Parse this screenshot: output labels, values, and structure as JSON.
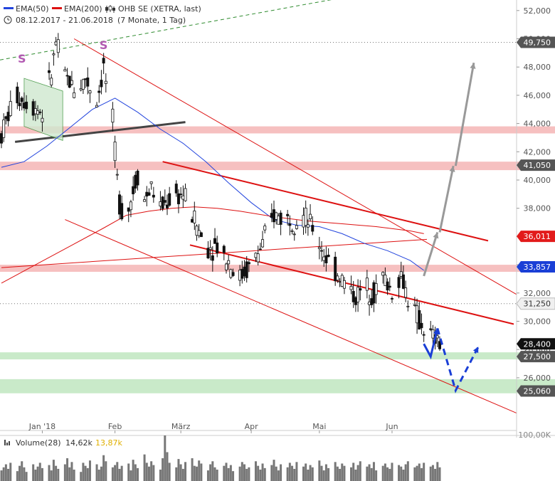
{
  "header": {
    "legend_ema50_label": "EMA(50)",
    "legend_ema200_label": "EMA(200)",
    "legend_symbol_label": "OHB SE (XETRA, last)",
    "range_label": "08.12.2017 - 21.06.2018",
    "period_label": "(7 Monate, 1 Tag)"
  },
  "colors": {
    "ema50": "#2244dd",
    "ema200": "#dd1111",
    "trendline": "#ee1111",
    "support_zone_red": "#f5b5b5",
    "support_zone_green": "#bfe6bf",
    "candle": "#111111",
    "volume": "#777777",
    "arrow_gray": "#999999",
    "arrow_blue": "#1a3fd6",
    "axis_text": "#555555",
    "pattern_marker": "#b25ab2"
  },
  "chart_data": {
    "type": "candlestick",
    "title": "OHB SE (XETRA, last)",
    "subtitle": "08.12.2017 - 21.06.2018 (7 Monate, 1 Tag)",
    "y_axis": {
      "ylim": [
        24500,
        52800
      ],
      "ticks": [
        "52,000",
        "50,000",
        "48,000",
        "46,000",
        "44,000",
        "42,000",
        "40,000",
        "38,000",
        "36,000",
        "34,000",
        "32,000",
        "30,000",
        "28,000",
        "26,000"
      ],
      "tick_values": [
        52000,
        50000,
        48000,
        46000,
        44000,
        42000,
        40000,
        38000,
        36000,
        34000,
        32000,
        30000,
        28000,
        26000
      ],
      "side": "right"
    },
    "x_axis": {
      "labels": [
        "Jan '18",
        "Feb",
        "März",
        "Apr",
        "Mai",
        "Jun"
      ],
      "label_days": [
        18,
        50,
        79,
        110,
        140,
        172
      ]
    },
    "price_path": {
      "x": [
        0,
        6,
        12,
        18,
        22,
        24,
        28,
        33,
        37,
        42,
        45,
        49,
        51,
        52,
        54,
        56,
        60,
        63,
        66,
        70,
        75,
        80,
        86,
        90,
        95,
        100,
        104,
        110,
        115,
        120,
        126,
        130,
        133,
        137,
        140,
        144,
        150,
        156,
        160,
        164,
        168,
        172,
        176,
        180,
        184,
        186,
        190,
        193
      ],
      "close": [
        43.2,
        46,
        45.5,
        44.8,
        47.5,
        49.7,
        47.4,
        46.3,
        47.2,
        45.6,
        48.0,
        44.0,
        40.0,
        38.5,
        37.5,
        38.0,
        40.5,
        38.6,
        39.5,
        38.0,
        38.8,
        39.0,
        36.8,
        35.2,
        35.4,
        34.3,
        33.0,
        34.0,
        35.4,
        37.5,
        37.3,
        37.2,
        37.4,
        36.6,
        35.5,
        34.2,
        33.0,
        31.7,
        32.5,
        32.0,
        33.2,
        32.1,
        33.3,
        31.2,
        30.0,
        29.5,
        28.8,
        28.4
      ]
    },
    "series": [
      {
        "name": "EMA(50)",
        "color": "#2244dd",
        "x": [
          0,
          10,
          20,
          30,
          40,
          50,
          60,
          70,
          80,
          90,
          100,
          110,
          120,
          130,
          140,
          150,
          160,
          170,
          180,
          186
        ],
        "values": [
          40.9,
          41.3,
          42.4,
          43.7,
          45.0,
          45.8,
          44.8,
          43.6,
          42.6,
          41.3,
          39.8,
          38.4,
          37.2,
          36.8,
          36.7,
          36.2,
          35.5,
          35.0,
          34.3,
          33.6
        ]
      },
      {
        "name": "EMA(200)",
        "color": "#dd1111",
        "x": [
          0,
          15,
          30,
          45,
          55,
          65,
          75,
          85,
          95,
          105,
          120,
          135,
          150,
          165,
          180,
          186
        ],
        "values": [
          32.7,
          34.0,
          35.3,
          36.6,
          37.5,
          37.8,
          38.0,
          38.1,
          38.0,
          37.8,
          37.4,
          37.1,
          36.9,
          36.7,
          36.4,
          36.2
        ]
      }
    ],
    "horizontal_levels": [
      {
        "label": "49,750",
        "value": 49.75,
        "tag_color": "#555555"
      },
      {
        "label": "41,050",
        "value": 41.05,
        "tag_color": "#555555",
        "zone": [
          40.7,
          41.3
        ],
        "zone_color": "#f5b5b5"
      },
      {
        "label": "36,011",
        "value": 36.011,
        "tag_color": "#e21b1b"
      },
      {
        "label": "33,857",
        "value": 33.857,
        "tag_color": "#1a3fd6",
        "zone": [
          33.5,
          34.0
        ],
        "zone_color": "#f5b5b5"
      },
      {
        "label": "31,250",
        "value": 31.25,
        "tag_color": "#f0f0f0",
        "text_color": "#333333"
      },
      {
        "label": "28,400",
        "value": 28.4,
        "tag_color": "#111111"
      },
      {
        "label": "27,500",
        "value": 27.5,
        "tag_color": "#555555",
        "zone": [
          27.3,
          27.8
        ],
        "zone_color": "#bfe6bf"
      },
      {
        "label": "25,060",
        "value": 25.06,
        "tag_color": "#555555",
        "zone": [
          24.9,
          25.9
        ],
        "zone_color": "#bfe6bf"
      }
    ],
    "extra_zones": [
      {
        "zone": [
          43.3,
          43.8
        ],
        "zone_color": "#f5b5b5"
      }
    ],
    "pattern_markers": [
      {
        "label": "S",
        "day": 9
      },
      {
        "label": "S",
        "day": 45
      }
    ],
    "volume_panel": {
      "label": "Volume(28)",
      "value1": "14,62k",
      "value2": "13,87k",
      "scale_label": "100,00K",
      "bars": [
        14,
        18,
        22,
        16,
        24,
        13,
        20,
        26,
        18,
        12,
        22,
        15,
        19,
        24,
        17,
        21,
        14,
        28,
        20,
        16,
        22,
        30,
        18,
        25,
        15,
        12,
        24,
        20,
        17,
        27,
        22,
        15,
        19,
        34,
        26,
        18,
        21,
        25,
        16,
        20,
        23,
        14,
        28,
        22,
        17,
        35,
        24,
        19,
        26,
        21,
        15,
        30,
        60,
        38,
        24,
        18,
        29,
        22,
        16,
        25,
        30,
        20,
        19,
        27,
        23,
        14,
        22,
        26,
        18,
        15,
        20,
        24,
        17,
        21,
        13,
        19,
        25,
        22,
        16,
        18,
        26,
        20,
        15,
        23,
        17,
        21,
        28,
        19,
        14,
        22,
        18,
        24,
        20,
        16,
        25,
        19,
        23,
        15,
        21,
        18,
        27,
        20,
        14,
        22,
        17,
        25,
        19,
        16,
        23,
        20,
        18,
        24,
        15,
        21,
        26,
        19,
        22,
        17,
        25,
        14,
        20,
        23,
        18,
        16,
        24,
        21,
        19,
        15,
        22,
        26,
        18,
        20,
        23,
        17,
        24,
        19,
        21,
        16,
        25,
        18,
        22,
        20,
        14,
        23,
        19,
        17,
        24,
        21,
        18,
        22,
        16,
        20,
        25,
        19,
        23,
        17,
        21,
        18,
        24,
        20,
        15,
        22,
        19,
        26,
        18,
        21,
        16,
        23,
        20,
        24,
        17,
        19,
        22,
        18,
        25,
        21,
        16,
        20,
        23,
        19,
        22,
        18,
        24,
        17,
        21,
        20,
        23,
        19,
        25,
        18
      ]
    },
    "annotations": {
      "gray_arrows": [
        {
          "from": [
            186,
            33.2
          ],
          "to": [
            192,
            36.3
          ]
        },
        {
          "from": [
            193,
            36.3
          ],
          "to": [
            199,
            41.0
          ]
        },
        {
          "from": [
            200,
            41.0
          ],
          "to": [
            208,
            48.3
          ]
        }
      ],
      "blue_path": [
        [
          186,
          28.4
        ],
        [
          189,
          27.5
        ],
        [
          192,
          29.5
        ]
      ],
      "blue_dashed_path": [
        [
          192,
          29.5
        ],
        [
          200,
          25.1
        ],
        [
          210,
          28.2
        ]
      ]
    },
    "legend_placement": "top-left",
    "grid": false
  }
}
